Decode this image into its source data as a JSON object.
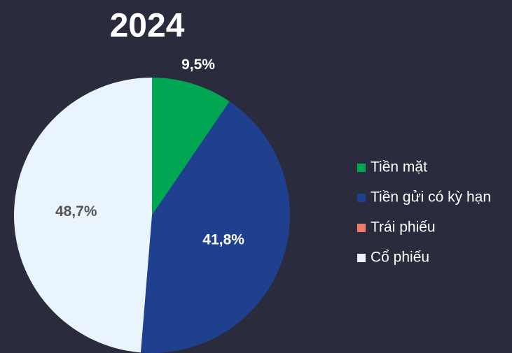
{
  "chart_data": {
    "type": "pie",
    "title": "2024",
    "categories": [
      "Tiền mặt",
      "Tiền gửi có kỳ hạn",
      "Trái phiếu",
      "Cổ phiếu"
    ],
    "values": [
      9.5,
      41.8,
      0,
      48.7
    ],
    "value_labels": [
      "9,5%",
      "41,8%",
      null,
      "48,7%"
    ],
    "colors": [
      "#00a651",
      "#1f3f8f",
      "#f07b6b",
      "#eaf4fd"
    ],
    "legend": "right"
  }
}
